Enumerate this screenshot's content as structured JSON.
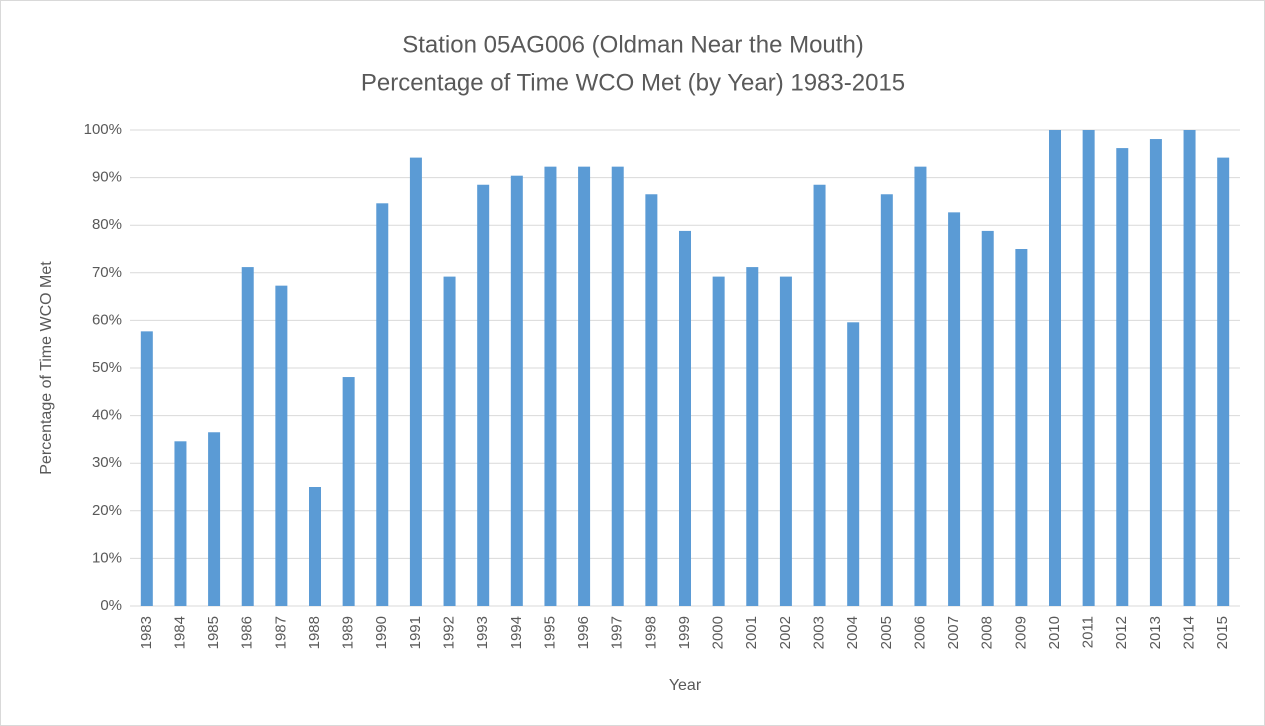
{
  "chart_data": {
    "type": "bar",
    "title": "Station 05AG006 (Oldman Near the Mouth)",
    "subtitle": "Percentage of Time WCO Met (by Year) 1983-2015",
    "x_label": "Year",
    "y_label": "Percentage of Time WCO Met",
    "categories": [
      "1983",
      "1984",
      "1985",
      "1986",
      "1987",
      "1988",
      "1989",
      "1990",
      "1991",
      "1992",
      "1993",
      "1994",
      "1995",
      "1996",
      "1997",
      "1998",
      "1999",
      "2000",
      "2001",
      "2002",
      "2003",
      "2004",
      "2005",
      "2006",
      "2007",
      "2008",
      "2009",
      "2010",
      "2011",
      "2012",
      "2013",
      "2014",
      "2015"
    ],
    "values": [
      57.7,
      34.6,
      36.5,
      71.2,
      67.3,
      25.0,
      48.1,
      84.6,
      94.2,
      69.2,
      88.5,
      90.4,
      92.3,
      92.3,
      92.3,
      86.5,
      78.8,
      69.2,
      71.2,
      69.2,
      88.5,
      59.6,
      86.5,
      92.3,
      82.7,
      78.8,
      75.0,
      100,
      100,
      96.2,
      98.1,
      100,
      94.2
    ],
    "color": "#5b9bd5",
    "ylim": [
      0,
      100
    ],
    "yticks": [
      {
        "value": 0,
        "label": "0%"
      },
      {
        "value": 10,
        "label": "10%"
      },
      {
        "value": 20,
        "label": "20%"
      },
      {
        "value": 30,
        "label": "30%"
      },
      {
        "value": 40,
        "label": "40%"
      },
      {
        "value": 50,
        "label": "50%"
      },
      {
        "value": 60,
        "label": "60%"
      },
      {
        "value": 70,
        "label": "70%"
      },
      {
        "value": 80,
        "label": "80%"
      },
      {
        "value": 90,
        "label": "90%"
      },
      {
        "value": 100,
        "label": "100%"
      }
    ],
    "grid": true
  }
}
